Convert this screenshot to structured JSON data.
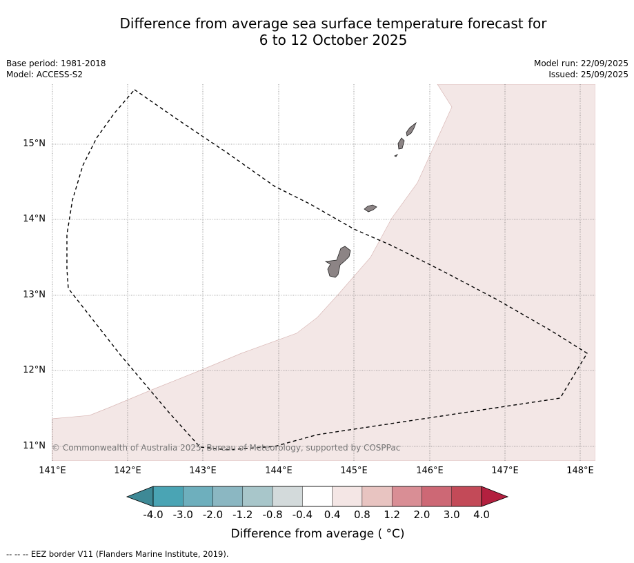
{
  "title": {
    "line1": "Difference from average sea surface temperature forecast for",
    "line2": "6 to 12 October 2025"
  },
  "meta": {
    "base_period": "Base period: 1981-2018",
    "model": "Model: ACCESS-S2",
    "model_run": "Model run: 22/09/2025",
    "issued": "Issued: 25/09/2025"
  },
  "map": {
    "latitude_labels": [
      "15°N",
      "14°N",
      "13°N",
      "12°N",
      "11°N"
    ],
    "longitude_labels": [
      "141°E",
      "142°E",
      "143°E",
      "144°E",
      "145°E",
      "146°E",
      "147°E",
      "148°E"
    ],
    "copyright": "© Commonwealth of Australia 2025, Bureau of Meteorology, supported by COSPPac",
    "colors": {
      "anomaly_fill": "#f3e7e6",
      "land": "#8c8485",
      "eez_border": "#000000"
    }
  },
  "colorbar": {
    "labels": [
      "-4.0",
      "-3.0",
      "-2.0",
      "-1.2",
      "-0.8",
      "-0.4",
      "0.4",
      "0.8",
      "1.2",
      "2.0",
      "3.0",
      "4.0"
    ],
    "colors": [
      "#4aa4b4",
      "#6eafbd",
      "#8bb7c2",
      "#a8c6ca",
      "#d3dadb",
      "#ffffff",
      "#f4e6e5",
      "#e8c4c1",
      "#d98e95",
      "#cd6875",
      "#c34a58"
    ],
    "extend_low_color": "#3e8996",
    "extend_high_color": "#b3203f",
    "title": "Difference from average ( °C)"
  },
  "footnote": "--  --  -- EEZ border V11 (Flanders Marine Institute, 2019)."
}
